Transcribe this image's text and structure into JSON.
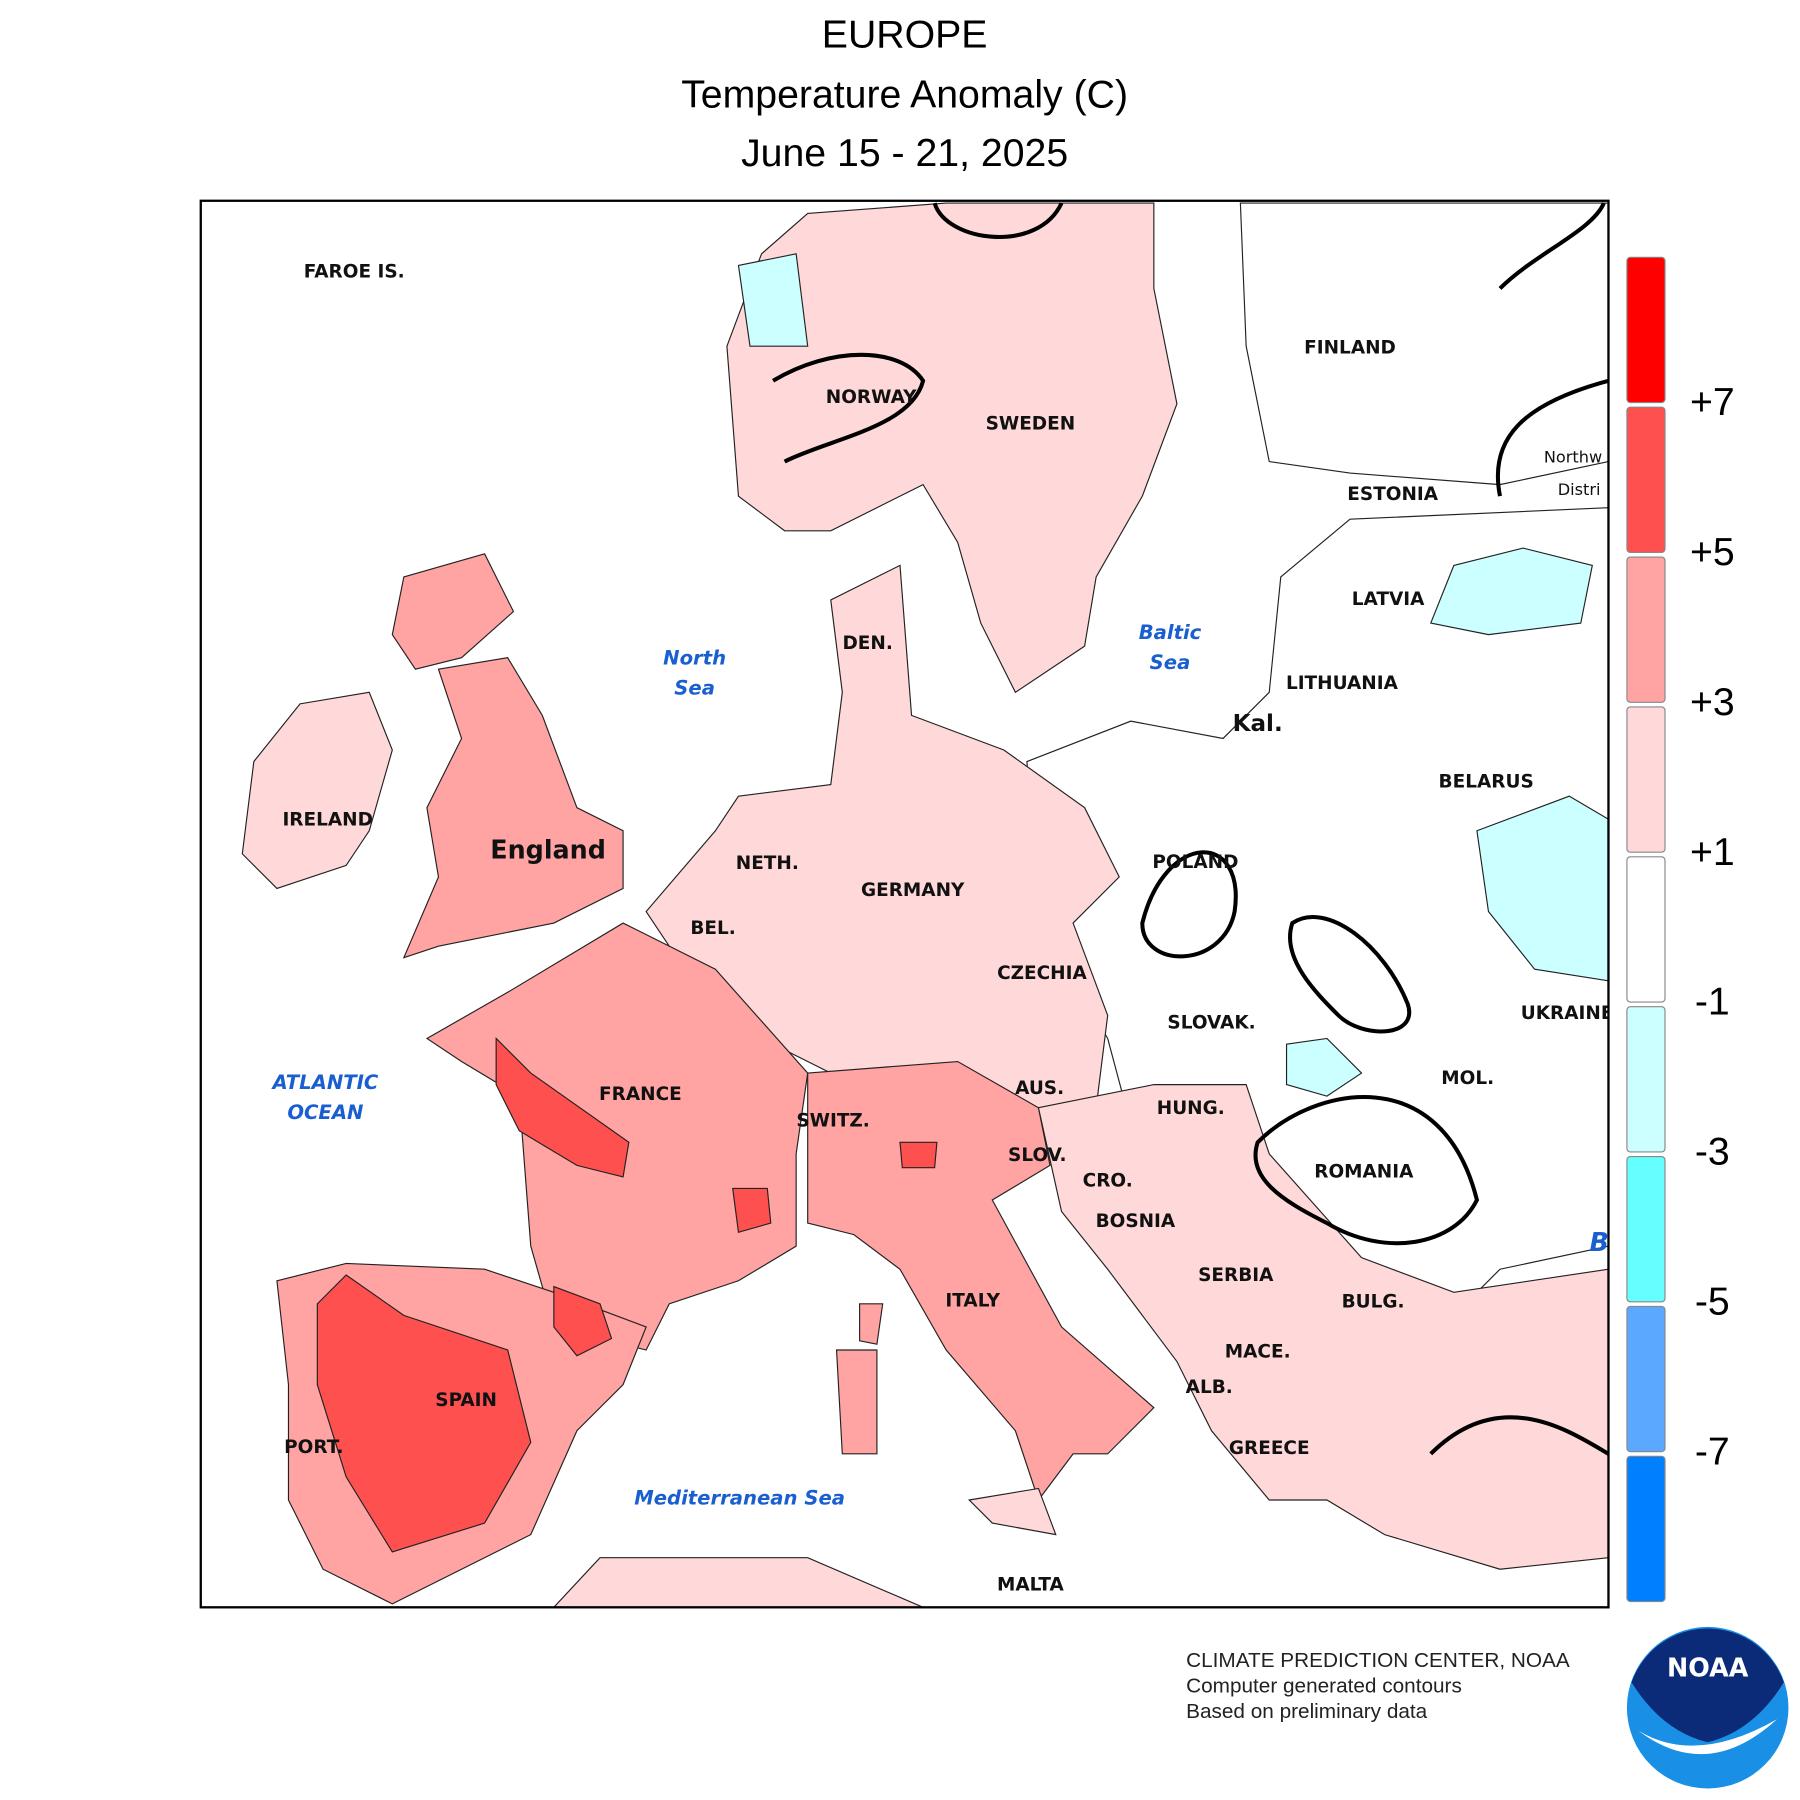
{
  "header": {
    "title": "EUROPE",
    "subtitle": "Temperature Anomaly (C)",
    "period": "June 15 - 21, 2025"
  },
  "map": {
    "labels": [
      "FAROE IS.",
      "NORWAY",
      "SWEDEN",
      "FINLAND",
      "ESTONIA",
      "LATVIA",
      "LITHUANIA",
      "Kal.",
      "BELARUS",
      "Northw",
      "Distri",
      "DEN.",
      "IRELAND",
      "England",
      "NETH.",
      "GERMANY",
      "POLAND",
      "BEL.",
      "CZECHIA",
      "SLOVAK.",
      "UKRAINE",
      "FRANCE",
      "SWITZ.",
      "AUS.",
      "HUNG.",
      "MOL.",
      "SLOV.",
      "CRO.",
      "ROMANIA",
      "BOSNIA",
      "SERBIA",
      "BULG.",
      "ITALY",
      "MACE.",
      "ALB.",
      "SPAIN",
      "PORT.",
      "GREECE",
      "MALTA"
    ],
    "seas": [
      "North",
      "Sea",
      "Baltic",
      "Sea",
      "ATLANTIC",
      "OCEAN",
      "Mediterranean Sea",
      "B"
    ]
  },
  "legend": {
    "colors": [
      "#ff0000",
      "#ff5050",
      "#ffa3a3",
      "#ffd9d9",
      "#ffffff",
      "#ccffff",
      "#66ffff",
      "#5aa8ff",
      "#0080ff"
    ],
    "ticks": [
      {
        "value": 7,
        "label": "+7"
      },
      {
        "value": 5,
        "label": "+5"
      },
      {
        "value": 3,
        "label": "+3"
      },
      {
        "value": 1,
        "label": "+1"
      },
      -1,
      -3,
      -5,
      -7
    ]
  },
  "footer": {
    "lines": [
      "CLIMATE PREDICTION CENTER, NOAA",
      "Computer generated contours",
      "Based on preliminary data"
    ]
  },
  "logo": {
    "text": "NOAA"
  }
}
